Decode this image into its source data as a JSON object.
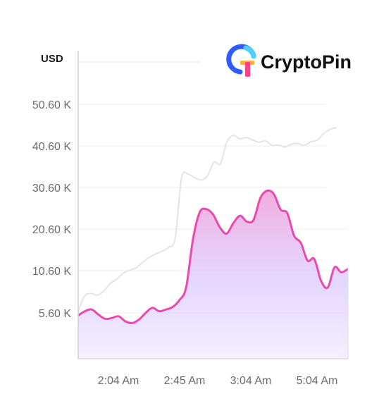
{
  "brand": {
    "name": "CryptoPin",
    "logo_icon": "cryptopin-logo-icon",
    "logo_colors": [
      "#2f5bff",
      "#4fd1ff",
      "#ff3f8a",
      "#ffb03a"
    ]
  },
  "chart_data": {
    "type": "area",
    "title": "",
    "xlabel": "",
    "ylabel": "USD",
    "y_tick_labels": [
      "50.60 K",
      "40.60 K",
      "30.60 K",
      "20.60 K",
      "10.60 K",
      "5.60 K"
    ],
    "x_tick_labels": [
      "2:04 Am",
      "2:45 Am",
      "3:04 Am",
      "5:04 Am"
    ],
    "grid": true,
    "legend": "none",
    "series": [
      {
        "style": "area",
        "color": "#e84ab0",
        "fill_top": "#f1a8dc",
        "fill_bottom": "#f4eeff",
        "values": [
          5.3,
          5.8,
          6.0,
          5.4,
          4.9,
          5.0,
          5.2,
          4.6,
          4.4,
          4.8,
          5.6,
          6.2,
          5.8,
          6.0,
          6.3,
          7.1,
          8.6,
          18.0,
          24.6,
          25.4,
          24.1,
          21.0,
          19.5,
          22.0,
          23.8,
          22.4,
          22.8,
          28.0,
          29.8,
          29.0,
          25.3,
          24.4,
          19.0,
          17.3,
          13.0,
          13.4,
          9.4,
          8.6,
          11.4,
          10.4,
          11.0
        ]
      },
      {
        "style": "line",
        "color": "#e4e4e4",
        "values": [
          5.8,
          7.6,
          7.9,
          7.7,
          8.2,
          9.1,
          9.6,
          10.3,
          10.7,
          11.3,
          12.6,
          13.8,
          14.6,
          15.3,
          16.2,
          18.4,
          32.9,
          33.8,
          33.0,
          32.4,
          33.4,
          36.7,
          36.3,
          41.5,
          43.1,
          42.3,
          42.6,
          42.0,
          41.5,
          41.8,
          40.7,
          40.8,
          40.3,
          41.0,
          41.2,
          40.7,
          41.6,
          42.0,
          43.6,
          44.6,
          45.0
        ]
      }
    ]
  }
}
